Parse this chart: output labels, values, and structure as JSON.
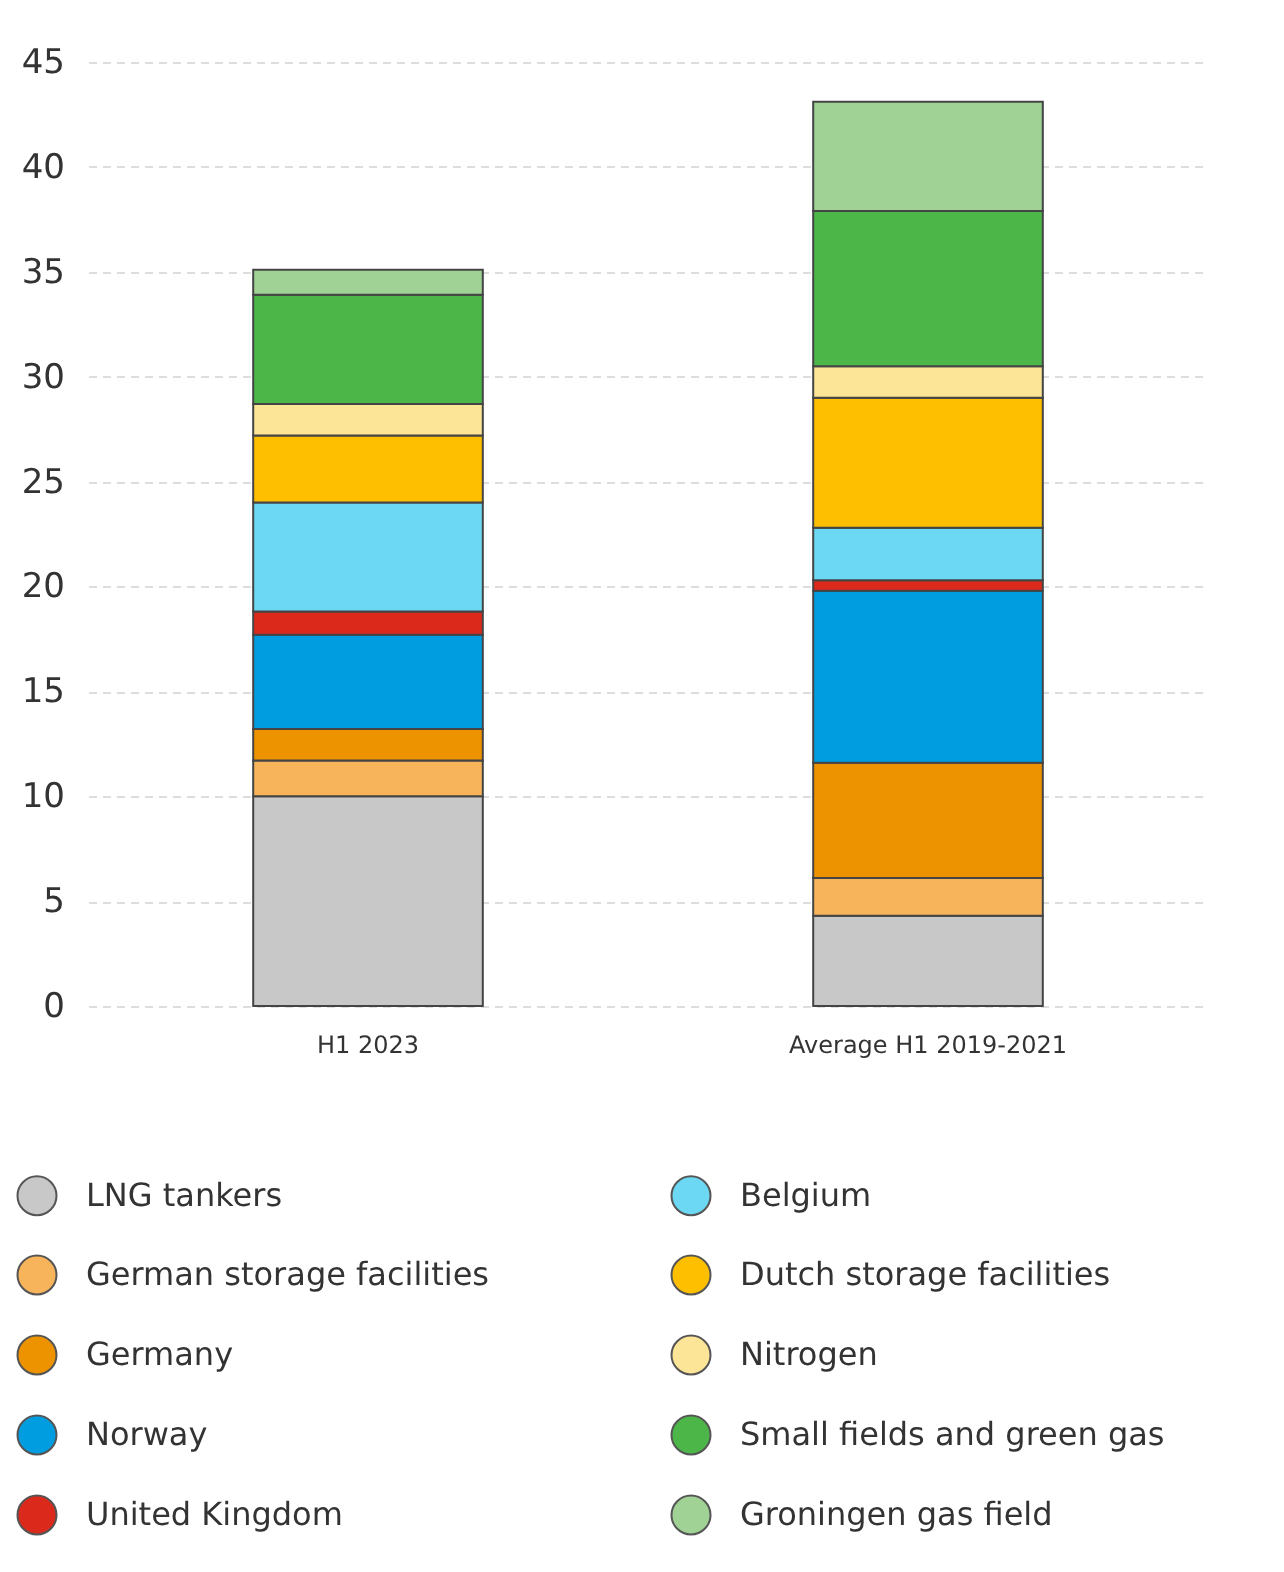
{
  "chart_data": {
    "type": "bar",
    "stacked": true,
    "categories": [
      "H1 2023",
      "Average H1 2019-2021"
    ],
    "series": [
      {
        "name": "LNG tankers",
        "color": "#c8c8c8",
        "values": [
          10.0,
          4.3
        ]
      },
      {
        "name": "German storage facilities",
        "color": "#f8b45a",
        "values": [
          1.7,
          1.8
        ]
      },
      {
        "name": "Germany",
        "color": "#ee9300",
        "values": [
          1.5,
          5.5
        ]
      },
      {
        "name": "Norway",
        "color": "#009de0",
        "values": [
          4.5,
          8.2
        ]
      },
      {
        "name": "United Kingdom",
        "color": "#db2a1c",
        "values": [
          1.1,
          0.5
        ]
      },
      {
        "name": "Belgium",
        "color": "#6cd8f4",
        "values": [
          5.2,
          2.5
        ]
      },
      {
        "name": "Dutch storage facilities",
        "color": "#fdbf00",
        "values": [
          3.2,
          6.2
        ]
      },
      {
        "name": "Nitrogen",
        "color": "#fce596",
        "values": [
          1.5,
          1.5
        ]
      },
      {
        "name": "Small fields and green gas",
        "color": "#4cb748",
        "values": [
          5.2,
          7.4
        ]
      },
      {
        "name": "Groningen gas field",
        "color": "#a0d295",
        "values": [
          1.2,
          5.2
        ]
      }
    ],
    "ylim": [
      0,
      45
    ],
    "yticks": [
      0,
      5,
      10,
      15,
      20,
      25,
      30,
      35,
      40,
      45
    ],
    "grid": true,
    "legend": "bottom"
  }
}
